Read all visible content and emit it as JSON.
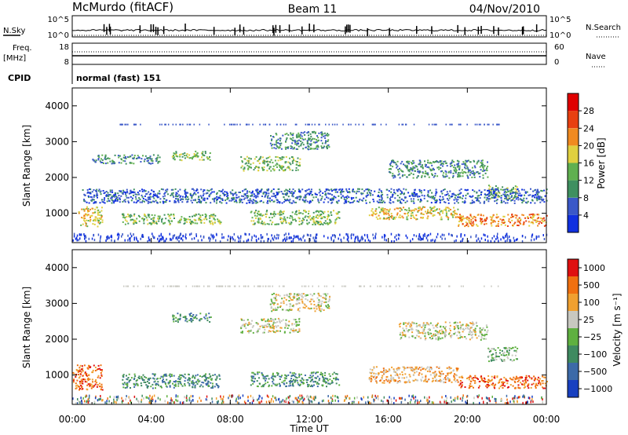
{
  "header": {
    "title": "McMurdo (fitACF)",
    "beam": "Beam 11",
    "date": "04/Nov/2010"
  },
  "top_panels": {
    "nsky_label": "N.Sky",
    "nsky_ticks": [
      "10^5",
      "10^0"
    ],
    "nsearch_label": "N.Search",
    "nsearch_ticks": [
      "10^5",
      "10^0"
    ],
    "freq_label": "Freq.",
    "freq_unit": "[MHz]",
    "freq_ticks": [
      "18",
      "8"
    ],
    "nave_label": "Nave",
    "nave_ticks": [
      "60",
      "0"
    ],
    "cpid_label": "CPID",
    "cpid_value": "normal (fast) 151"
  },
  "chart_data": [
    {
      "type": "heatmap",
      "name": "power",
      "ylabel": "Slant Range [km]",
      "ylim": [
        180,
        4500
      ],
      "yticks": [
        1000,
        2000,
        3000,
        4000
      ],
      "xlim_hours": [
        0,
        24
      ],
      "colorbar": {
        "label": "Power [dB]",
        "ticks": [
          "4",
          "8",
          "12",
          "16",
          "20",
          "24",
          "28"
        ],
        "colors": [
          "#1030e0",
          "#3a58c8",
          "#3f9060",
          "#60b050",
          "#e0d040",
          "#f08a20",
          "#e84010",
          "#e00000"
        ]
      },
      "echo_bands": [
        {
          "start": 0.3,
          "end": 1.5,
          "range_lo": 650,
          "range_hi": 1200,
          "level": 4
        },
        {
          "start": 2.5,
          "end": 7.5,
          "range_lo": 700,
          "range_hi": 1000,
          "level": 3
        },
        {
          "start": 5.0,
          "end": 7.0,
          "range_lo": 2500,
          "range_hi": 2750,
          "level": 3
        },
        {
          "start": 1.0,
          "end": 4.5,
          "range_lo": 2400,
          "range_hi": 2650,
          "level": 2
        },
        {
          "start": 8.5,
          "end": 11.5,
          "range_lo": 2200,
          "range_hi": 2600,
          "level": 3
        },
        {
          "start": 9.0,
          "end": 13.5,
          "range_lo": 700,
          "range_hi": 1100,
          "level": 3
        },
        {
          "start": 10.0,
          "end": 13.0,
          "range_lo": 2800,
          "range_hi": 3300,
          "level": 2
        },
        {
          "start": 15.0,
          "end": 19.5,
          "range_lo": 850,
          "range_hi": 1200,
          "level": 4
        },
        {
          "start": 16.0,
          "end": 21.0,
          "range_lo": 2000,
          "range_hi": 2500,
          "level": 2
        },
        {
          "start": 19.5,
          "end": 24.0,
          "range_lo": 650,
          "range_hi": 1000,
          "level": 5
        },
        {
          "start": 21.0,
          "end": 22.5,
          "range_lo": 1400,
          "range_hi": 1800,
          "level": 3
        },
        {
          "start": 0.5,
          "end": 24.0,
          "range_lo": 1300,
          "range_hi": 1700,
          "level": 1
        }
      ]
    },
    {
      "type": "heatmap",
      "name": "velocity",
      "ylabel": "Slant Range [km]",
      "ylim": [
        180,
        4500
      ],
      "yticks": [
        1000,
        2000,
        3000,
        4000
      ],
      "xlabel": "Time UT",
      "xticks": [
        "00:00",
        "04:00",
        "08:00",
        "12:00",
        "16:00",
        "20:00",
        "00:00"
      ],
      "colorbar": {
        "label": "Velocity [m s⁻¹]",
        "ticks": [
          "1000",
          "500",
          "100",
          "25",
          "−25",
          "−100",
          "−500",
          "−1000"
        ],
        "colors": [
          "#1840c0",
          "#3c6aa8",
          "#3f8a60",
          "#5fb040",
          "#c8c8c0",
          "#f0a030",
          "#f07010",
          "#e01010"
        ]
      },
      "echo_bands": [
        {
          "start": 0.0,
          "end": 1.5,
          "range_lo": 600,
          "range_hi": 1300,
          "level": 6
        },
        {
          "start": 2.5,
          "end": 7.5,
          "range_lo": 650,
          "range_hi": 1050,
          "level": 2
        },
        {
          "start": 5.0,
          "end": 7.0,
          "range_lo": 2500,
          "range_hi": 2750,
          "level": 2
        },
        {
          "start": 8.5,
          "end": 11.5,
          "range_lo": 2200,
          "range_hi": 2600,
          "level": 4
        },
        {
          "start": 9.0,
          "end": 13.5,
          "range_lo": 700,
          "range_hi": 1100,
          "level": 2
        },
        {
          "start": 10.0,
          "end": 13.0,
          "range_lo": 2800,
          "range_hi": 3300,
          "level": 4
        },
        {
          "start": 15.0,
          "end": 19.5,
          "range_lo": 800,
          "range_hi": 1250,
          "level": 5
        },
        {
          "start": 16.5,
          "end": 21.0,
          "range_lo": 2000,
          "range_hi": 2500,
          "level": 4
        },
        {
          "start": 19.5,
          "end": 24.0,
          "range_lo": 650,
          "range_hi": 1000,
          "level": 6
        },
        {
          "start": 21.0,
          "end": 22.5,
          "range_lo": 1400,
          "range_hi": 1800,
          "level": 3
        }
      ]
    }
  ]
}
